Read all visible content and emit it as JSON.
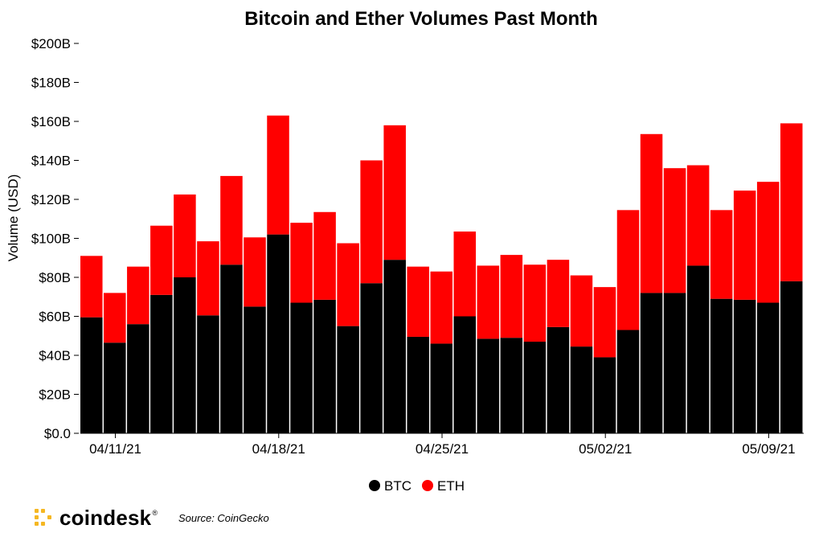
{
  "chart_data": {
    "type": "bar",
    "stacked": true,
    "title": "Bitcoin and Ether Volumes Past Month",
    "ylabel": "Volume (USD)",
    "xlabel": "",
    "ylim": [
      0,
      200
    ],
    "yticks": [
      "$0.0",
      "$20B",
      "$40B",
      "$60B",
      "$80B",
      "$100B",
      "$120B",
      "$140B",
      "$160B",
      "$180B",
      "$200B"
    ],
    "ytick_values": [
      0,
      20,
      40,
      60,
      80,
      100,
      120,
      140,
      160,
      180,
      200
    ],
    "xtick_labels": [
      {
        "index": 1,
        "label": "04/11/21"
      },
      {
        "index": 8,
        "label": "04/18/21"
      },
      {
        "index": 15,
        "label": "04/25/21"
      },
      {
        "index": 22,
        "label": "05/02/21"
      },
      {
        "index": 29,
        "label": "05/09/21"
      }
    ],
    "series": [
      {
        "name": "BTC",
        "color": "#000000",
        "values": [
          59.5,
          46.5,
          56,
          71,
          80,
          60.5,
          86.5,
          65,
          102,
          67,
          68.5,
          55,
          77,
          89,
          49.5,
          46,
          60,
          48.5,
          49,
          47,
          54.5,
          44.5,
          39,
          53,
          72,
          72,
          86,
          69,
          68.5,
          67,
          78
        ]
      },
      {
        "name": "ETH",
        "color": "#ff0000",
        "values": [
          31.5,
          25.5,
          29.5,
          35.5,
          42.5,
          38,
          45.5,
          35.5,
          61,
          41,
          45,
          42.5,
          63,
          69,
          36,
          37,
          43.5,
          37.5,
          42.5,
          39.5,
          34.5,
          36.5,
          36,
          61.5,
          81.5,
          64,
          51.5,
          45.5,
          56,
          62,
          81
        ]
      }
    ],
    "legend_position": "bottom-center",
    "grid": false
  },
  "footer": {
    "brand": "coindesk",
    "registered": "®",
    "source": "Source: CoinGecko"
  }
}
